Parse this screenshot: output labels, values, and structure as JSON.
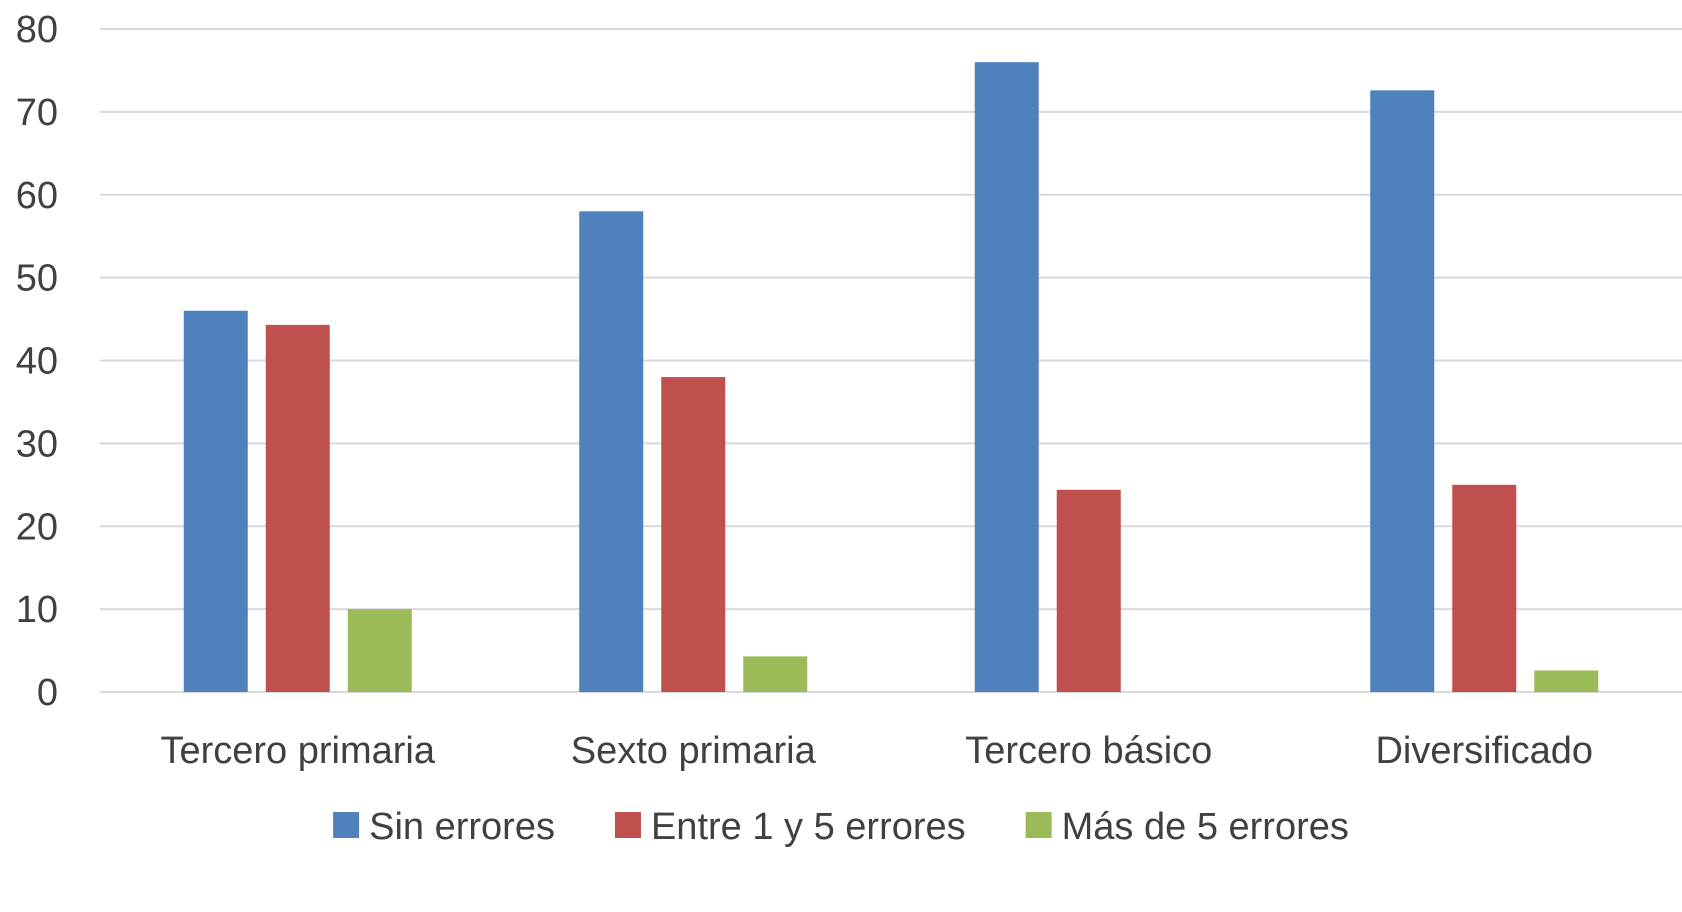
{
  "chart_data": {
    "type": "bar",
    "title": "",
    "xlabel": "",
    "ylabel": "",
    "categories": [
      "Tercero primaria",
      "Sexto primaria",
      "Tercero básico",
      "Diversificado"
    ],
    "series": [
      {
        "name": "Sin errores",
        "color": "#4F81BD",
        "values": [
          46,
          58,
          76,
          72.6
        ]
      },
      {
        "name": "Entre 1 y 5 errores",
        "color": "#C0504D",
        "values": [
          44.3,
          38,
          24.4,
          25
        ]
      },
      {
        "name": "Más de 5 errores",
        "color": "#9BBB59",
        "values": [
          10,
          4.3,
          0,
          2.6
        ]
      }
    ],
    "ylim": [
      0,
      80
    ],
    "yticks": [
      "0",
      "10",
      "20",
      "30",
      "40",
      "50",
      "60",
      "70",
      "80"
    ],
    "grid": true,
    "gridline_color": "#D9D9D9",
    "legend_position": "bottom"
  }
}
